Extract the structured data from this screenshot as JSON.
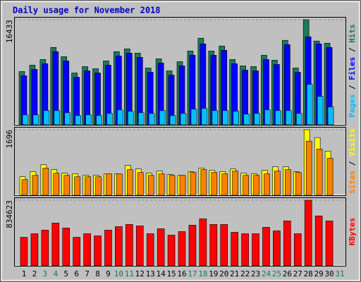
{
  "chart_data": [
    {
      "type": "bar",
      "title": "Daily usage for November 2018",
      "legend_separator": " / ",
      "ylim": [
        0,
        16433
      ],
      "yticks": [
        16433
      ],
      "series": [
        {
          "name": "Hits",
          "color": "#1a7a5a",
          "values": [
            8328,
            9327,
            10215,
            12102,
            10659,
            8105,
            9104,
            8771,
            9993,
            11436,
            11880,
            11214,
            8882,
            10326,
            8438,
            9882,
            11547,
            13546,
            11547,
            12324,
            10215,
            9215,
            9104,
            10881,
            10104,
            13213,
            8882,
            16433,
            13102,
            12768,
            0
          ]
        },
        {
          "name": "Files",
          "color": "#0000ff",
          "values": [
            7661,
            8660,
            9549,
            11436,
            9993,
            7439,
            8438,
            8105,
            9327,
            10770,
            11214,
            10548,
            8216,
            9660,
            7772,
            9215,
            10881,
            12657,
            10881,
            11658,
            9549,
            8549,
            8438,
            10215,
            9438,
            12546,
            8216,
            13768,
            12657,
            12102,
            0
          ]
        },
        {
          "name": "Pages",
          "color": "#00c0ff",
          "values": [
            1554,
            1554,
            2221,
            2221,
            1888,
            1443,
            1554,
            1443,
            1776,
            2332,
            2110,
            1888,
            1776,
            2221,
            1443,
            1776,
            2443,
            2554,
            2221,
            2221,
            2110,
            1665,
            1776,
            2332,
            2221,
            2221,
            1776,
            6329,
            4441,
            2776,
            0
          ]
        }
      ]
    },
    {
      "type": "bar",
      "ylim": [
        0,
        1696
      ],
      "yticks": [
        1696
      ],
      "series": [
        {
          "name": "Visits",
          "color": "#ffff00",
          "values": [
            479,
            608,
            793,
            664,
            571,
            553,
            516,
            516,
            553,
            553,
            774,
            682,
            571,
            627,
            534,
            516,
            608,
            700,
            645,
            608,
            682,
            571,
            553,
            645,
            737,
            737,
            608,
            1696,
            1493,
            1143,
            0
          ]
        },
        {
          "name": "Sites",
          "color": "#ff8000",
          "values": [
            405,
            516,
            700,
            571,
            516,
            479,
            479,
            479,
            553,
            553,
            664,
            590,
            516,
            553,
            516,
            516,
            590,
            664,
            590,
            553,
            627,
            516,
            516,
            553,
            627,
            664,
            590,
            1401,
            1198,
            958,
            0
          ]
        }
      ]
    },
    {
      "type": "bar",
      "ylim": [
        0,
        834623
      ],
      "yticks": [
        834623
      ],
      "categories": [
        "1",
        "2",
        "3",
        "4",
        "5",
        "6",
        "7",
        "8",
        "9",
        "10",
        "11",
        "12",
        "13",
        "14",
        "15",
        "16",
        "17",
        "18",
        "19",
        "20",
        "21",
        "22",
        "23",
        "24",
        "25",
        "26",
        "27",
        "28",
        "29",
        "30",
        "31"
      ],
      "category_colors": [
        "#000000",
        "#000000",
        "#1a7a5a",
        "#1a7a5a",
        "#000000",
        "#000000",
        "#000000",
        "#000000",
        "#000000",
        "#1a7a5a",
        "#1a7a5a",
        "#000000",
        "#000000",
        "#000000",
        "#000000",
        "#000000",
        "#1a7a5a",
        "#1a7a5a",
        "#000000",
        "#000000",
        "#000000",
        "#000000",
        "#000000",
        "#1a7a5a",
        "#1a7a5a",
        "#000000",
        "#000000",
        "#000000",
        "#000000",
        "#000000",
        "#1a7a5a"
      ],
      "series": [
        {
          "name": "KBytes",
          "color": "#ff0000",
          "values": [
            362880,
            408240,
            453600,
            544320,
            480816,
            362880,
            408240,
            381024,
            453600,
            498960,
            526176,
            508032,
            408240,
            471744,
            390096,
            435456,
            517104,
            598752,
            526176,
            526176,
            426384,
            408240,
            408240,
            489888,
            444528,
            571536,
            408240,
            834623,
            635040,
            571536,
            0
          ]
        }
      ]
    }
  ]
}
